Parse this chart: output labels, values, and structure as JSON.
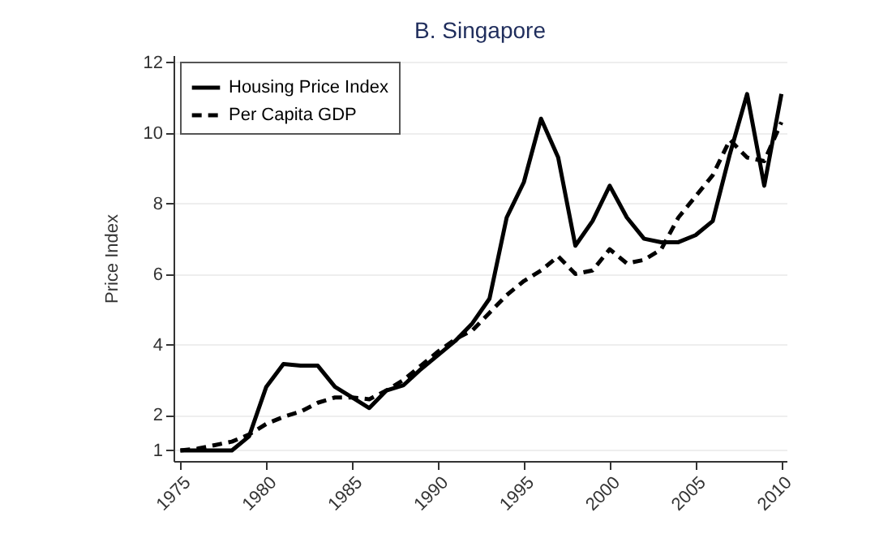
{
  "chart_data": {
    "type": "line",
    "title": "B. Singapore",
    "ylabel": "Price Index",
    "x": [
      1975,
      1976,
      1977,
      1978,
      1979,
      1980,
      1981,
      1982,
      1983,
      1984,
      1985,
      1986,
      1987,
      1988,
      1989,
      1990,
      1991,
      1992,
      1993,
      1994,
      1995,
      1996,
      1997,
      1998,
      1999,
      2000,
      2001,
      2002,
      2003,
      2004,
      2005,
      2006,
      2007,
      2008,
      2009,
      2010
    ],
    "series": [
      {
        "name": "Housing Price Index",
        "color": "#000000",
        "line_style": "solid",
        "values": [
          1.0,
          1.0,
          1.0,
          1.0,
          1.4,
          2.8,
          3.45,
          3.4,
          3.4,
          2.8,
          2.5,
          2.2,
          2.7,
          2.85,
          3.3,
          3.7,
          4.1,
          4.6,
          5.3,
          7.6,
          8.6,
          10.4,
          9.3,
          6.8,
          7.5,
          8.5,
          7.6,
          7.0,
          6.9,
          6.9,
          7.1,
          7.5,
          9.4,
          11.1,
          8.5,
          11.1
        ]
      },
      {
        "name": "Per Capita GDP",
        "color": "#000000",
        "line_style": "dashed",
        "values": [
          1.0,
          1.05,
          1.15,
          1.25,
          1.45,
          1.75,
          1.95,
          2.1,
          2.35,
          2.5,
          2.5,
          2.45,
          2.7,
          3.0,
          3.4,
          3.8,
          4.15,
          4.4,
          4.9,
          5.4,
          5.8,
          6.1,
          6.5,
          6.0,
          6.1,
          6.7,
          6.3,
          6.4,
          6.7,
          7.6,
          8.2,
          8.8,
          9.8,
          9.3,
          9.2,
          10.3
        ]
      }
    ],
    "xlim": [
      1974.6,
      2010.3
    ],
    "xticks": [
      1975,
      1980,
      1985,
      1990,
      1995,
      2000,
      2005,
      2010
    ],
    "ylim": [
      0.7,
      12.2
    ],
    "yticks": [
      1,
      2,
      4,
      6,
      8,
      10,
      12
    ],
    "grid": "y",
    "legend": "top left",
    "marker": "none"
  }
}
